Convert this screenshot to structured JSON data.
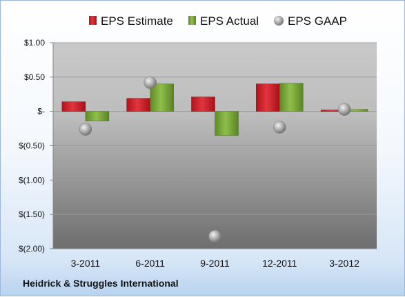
{
  "company": "Heidrick & Struggles International",
  "colors": {
    "estimate": "#d9232d",
    "actual": "#7fae3c",
    "gaap": "#a9a9a9"
  },
  "chart_data": {
    "type": "bar",
    "categories": [
      "3-2011",
      "6-2011",
      "9-2011",
      "12-2011",
      "3-2012"
    ],
    "series": [
      {
        "name": "EPS Estimate",
        "type": "bar",
        "values": [
          0.14,
          0.19,
          0.21,
          0.4,
          0.02
        ]
      },
      {
        "name": "EPS Actual",
        "type": "bar",
        "values": [
          -0.14,
          0.4,
          -0.35,
          0.41,
          0.03
        ]
      },
      {
        "name": "EPS GAAP",
        "type": "scatter",
        "values": [
          -0.26,
          0.42,
          -1.82,
          -0.23,
          0.03
        ]
      }
    ],
    "ylim": [
      -2.0,
      1.0
    ],
    "yticks": [
      1.0,
      0.5,
      0,
      -0.5,
      -1.0,
      -1.5,
      -2.0
    ],
    "ytick_labels": [
      "$1.00",
      "$0.50",
      "$-",
      "$(0.50)",
      "$(1.00)",
      "$(1.50)",
      "$(2.00)"
    ],
    "grid": true,
    "legend_position": "top"
  }
}
